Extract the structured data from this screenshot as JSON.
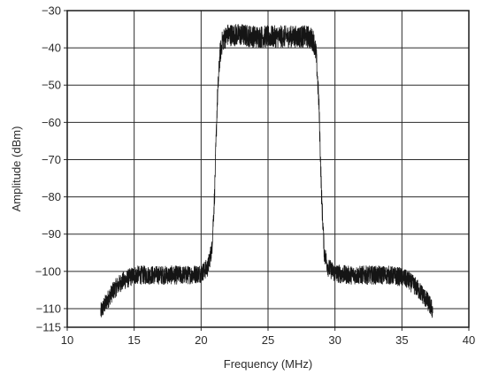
{
  "chart_data": {
    "type": "line",
    "title": "",
    "xlabel": "Frequency (MHz)",
    "ylabel": "Amplitude (dBm)",
    "xlim": [
      10,
      40
    ],
    "ylim": [
      -115,
      -30
    ],
    "xticks": [
      10,
      15,
      20,
      25,
      30,
      35,
      40
    ],
    "yticks": [
      -30,
      -40,
      -50,
      -60,
      -70,
      -80,
      -90,
      -100,
      -110,
      -115
    ],
    "xtick_labels": [
      "10",
      "15",
      "20",
      "25",
      "30",
      "35",
      "40"
    ],
    "ytick_labels": [
      "−30",
      "−40",
      "−50",
      "−60",
      "−70",
      "−80",
      "−90",
      "−100",
      "−110",
      "−115"
    ],
    "grid": true,
    "legend": "none",
    "colors": {
      "trace": "#151515",
      "grid": "#2a2a2a",
      "text": "#2b2b2b"
    },
    "series": [
      {
        "x": [
          12.5,
          12.8,
          13.2,
          13.6,
          14.0,
          14.5,
          15.0,
          16.0,
          17.0,
          18.0,
          19.0,
          20.0,
          20.5,
          20.8,
          21.0,
          21.2,
          21.4,
          21.6,
          22.0,
          23.0,
          24.0,
          25.0,
          26.0,
          27.0,
          28.0,
          28.4,
          28.6,
          28.8,
          29.0,
          29.2,
          29.5,
          30.0,
          31.0,
          32.0,
          33.0,
          34.0,
          35.0,
          35.5,
          36.0,
          36.5,
          37.0,
          37.3
        ],
        "y": [
          -111,
          -109,
          -106.5,
          -104.5,
          -103,
          -102,
          -101,
          -101,
          -101,
          -101,
          -101,
          -100.5,
          -99,
          -94,
          -80,
          -55,
          -42,
          -38,
          -36.5,
          -36.5,
          -37,
          -37,
          -37,
          -37,
          -37,
          -38,
          -42,
          -55,
          -80,
          -95,
          -99,
          -100.5,
          -101,
          -101,
          -101,
          -101,
          -101.5,
          -102.5,
          -104,
          -106,
          -108.5,
          -110.5
        ],
        "noise_db": [
          2.5,
          2.5,
          2.5,
          2.5,
          2.5,
          2.5,
          2.5,
          2.5,
          2.5,
          2.5,
          2.5,
          2.5,
          2.5,
          2.5,
          3,
          3,
          3,
          3,
          3,
          3,
          3,
          3,
          3,
          3,
          3,
          3,
          3,
          3,
          3,
          2.5,
          2.5,
          2.5,
          2.5,
          2.5,
          2.5,
          2.5,
          2.5,
          2.5,
          2.5,
          2.5,
          2.5,
          2.5
        ]
      }
    ]
  }
}
